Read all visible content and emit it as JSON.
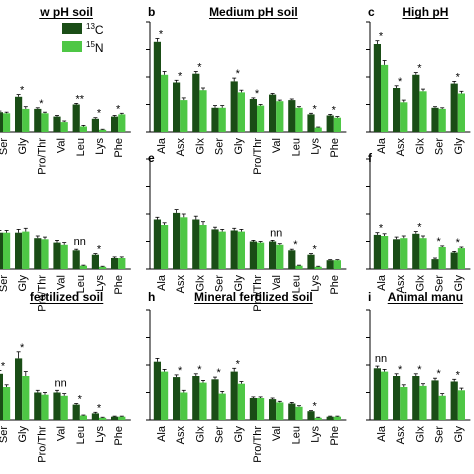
{
  "legend": {
    "c13": {
      "sup": "13",
      "label": "C",
      "color": "#1a4d16"
    },
    "n15": {
      "sup": "15",
      "label": "N",
      "color": "#4ec745"
    }
  },
  "chart_data": [
    {
      "type": "bar",
      "letter": "",
      "title": "w pH soil",
      "categories": [
        "Ser",
        "Gly",
        "Pro/Thr",
        "Val",
        "Leu",
        "Lys",
        "Phe"
      ],
      "series": [
        {
          "key": "c13",
          "values": [
            0.18,
            0.32,
            0.21,
            0.14,
            0.25,
            0.12,
            0.14
          ]
        },
        {
          "key": "n15",
          "values": [
            0.17,
            0.21,
            0.17,
            0.09,
            0.05,
            0.02,
            0.16
          ]
        }
      ],
      "errors": [
        [
          0.01,
          0.02,
          0.01,
          0.01,
          0.01,
          0.01,
          0.01
        ],
        [
          0.01,
          0.02,
          0.01,
          0.01,
          0.01,
          0.005,
          0.01
        ]
      ],
      "annotations": [
        "",
        "*",
        "*",
        "",
        "**",
        "*",
        "*"
      ],
      "ylim": [
        0,
        1
      ]
    },
    {
      "type": "bar",
      "letter": "b",
      "title": "Medium pH soil",
      "categories": [
        "Ala",
        "Asx",
        "Glx",
        "Ser",
        "Gly",
        "Pro/Thr",
        "Val",
        "Leu",
        "Lys",
        "Phe"
      ],
      "series": [
        {
          "key": "c13",
          "values": [
            0.82,
            0.45,
            0.53,
            0.22,
            0.46,
            0.3,
            0.34,
            0.29,
            0.16,
            0.15
          ]
        },
        {
          "key": "n15",
          "values": [
            0.52,
            0.29,
            0.38,
            0.22,
            0.36,
            0.24,
            0.28,
            0.22,
            0.04,
            0.13
          ]
        }
      ],
      "errors": [
        [
          0.03,
          0.02,
          0.02,
          0.02,
          0.03,
          0.01,
          0.01,
          0.01,
          0.01,
          0.01
        ],
        [
          0.03,
          0.02,
          0.02,
          0.02,
          0.02,
          0.01,
          0.01,
          0.01,
          0.005,
          0.01
        ]
      ],
      "annotations": [
        "*",
        "*",
        "*",
        "",
        "*",
        "*",
        "",
        "",
        "*",
        "*"
      ],
      "ylim": [
        0,
        1
      ]
    },
    {
      "type": "bar",
      "letter": "c",
      "title": "High pH",
      "categories": [
        "Ala",
        "Asx",
        "Glx",
        "Ser",
        "Gly"
      ],
      "series": [
        {
          "key": "c13",
          "values": [
            0.8,
            0.4,
            0.52,
            0.22,
            0.44
          ]
        },
        {
          "key": "n15",
          "values": [
            0.61,
            0.27,
            0.37,
            0.21,
            0.35
          ]
        }
      ],
      "errors": [
        [
          0.03,
          0.02,
          0.02,
          0.01,
          0.02
        ],
        [
          0.04,
          0.02,
          0.02,
          0.01,
          0.02
        ]
      ],
      "annotations": [
        "*",
        "*",
        "*",
        "",
        "*"
      ],
      "ylim": [
        0,
        1
      ]
    },
    {
      "type": "bar",
      "letter": "",
      "title": "",
      "categories": [
        "Ser",
        "Gly",
        "Pro/Thr",
        "Val",
        "Leu",
        "Lys",
        "Phe"
      ],
      "series": [
        {
          "key": "c13",
          "values": [
            0.33,
            0.33,
            0.28,
            0.24,
            0.17,
            0.13,
            0.1
          ]
        },
        {
          "key": "n15",
          "values": [
            0.33,
            0.34,
            0.27,
            0.22,
            0.03,
            0.02,
            0.1
          ]
        }
      ],
      "errors": [
        [
          0.02,
          0.03,
          0.02,
          0.02,
          0.01,
          0.01,
          0.01
        ],
        [
          0.02,
          0.03,
          0.02,
          0.02,
          0.005,
          0.005,
          0.01
        ]
      ],
      "annotations": [
        "",
        "",
        "",
        "",
        "nn",
        "*",
        ""
      ],
      "ylim": [
        0,
        1
      ]
    },
    {
      "type": "bar",
      "letter": "e",
      "title": "",
      "categories": [
        "Ala",
        "Asx",
        "Glx",
        "Ser",
        "Gly",
        "Pro/Thr",
        "Val",
        "Leu",
        "Lys",
        "Phe"
      ],
      "series": [
        {
          "key": "c13",
          "values": [
            0.45,
            0.51,
            0.45,
            0.36,
            0.35,
            0.25,
            0.25,
            0.17,
            0.13,
            0.08
          ]
        },
        {
          "key": "n15",
          "values": [
            0.4,
            0.47,
            0.4,
            0.34,
            0.34,
            0.24,
            0.22,
            0.03,
            0.02,
            0.08
          ]
        }
      ],
      "errors": [
        [
          0.02,
          0.03,
          0.03,
          0.02,
          0.02,
          0.01,
          0.01,
          0.01,
          0.01,
          0.005
        ],
        [
          0.02,
          0.03,
          0.03,
          0.02,
          0.02,
          0.01,
          0.01,
          0.005,
          0.005,
          0.005
        ]
      ],
      "annotations": [
        "",
        "",
        "",
        "",
        "",
        "",
        "nn",
        "*",
        "*",
        ""
      ],
      "ylim": [
        0,
        1
      ]
    },
    {
      "type": "bar",
      "letter": "f",
      "title": "",
      "categories": [
        "Ala",
        "Asx",
        "Glx",
        "Ser",
        "Gly"
      ],
      "series": [
        {
          "key": "c13",
          "values": [
            0.31,
            0.27,
            0.32,
            0.09,
            0.15
          ]
        },
        {
          "key": "n15",
          "values": [
            0.3,
            0.28,
            0.28,
            0.2,
            0.19
          ]
        }
      ],
      "errors": [
        [
          0.02,
          0.02,
          0.02,
          0.01,
          0.01
        ],
        [
          0.02,
          0.02,
          0.02,
          0.01,
          0.01
        ]
      ],
      "annotations": [
        "*",
        "",
        "*",
        "*",
        "*"
      ],
      "ylim": [
        0,
        1
      ]
    },
    {
      "type": "bar",
      "letter": "",
      "title": "fertilized soil",
      "categories": [
        "Ser",
        "Gly",
        "Pro/Thr",
        "Val",
        "Leu",
        "Lys",
        "Phe"
      ],
      "series": [
        {
          "key": "c13",
          "values": [
            0.42,
            0.56,
            0.25,
            0.25,
            0.14,
            0.06,
            0.03
          ]
        },
        {
          "key": "n15",
          "values": [
            0.3,
            0.4,
            0.23,
            0.22,
            0.04,
            0.02,
            0.03
          ]
        }
      ],
      "errors": [
        [
          0.03,
          0.06,
          0.02,
          0.02,
          0.01,
          0.01,
          0.005
        ],
        [
          0.02,
          0.04,
          0.02,
          0.02,
          0.005,
          0.005,
          0.005
        ]
      ],
      "annotations": [
        "*",
        "*",
        "",
        "nn",
        "*",
        "*",
        ""
      ],
      "ylim": [
        0,
        1
      ]
    },
    {
      "type": "bar",
      "letter": "h",
      "title": "Mineral fertilized soil",
      "categories": [
        "Ala",
        "Asx",
        "Glx",
        "Ser",
        "Gly",
        "Pro/Thr",
        "Val",
        "Leu",
        "Lys",
        "Phe"
      ],
      "series": [
        {
          "key": "c13",
          "values": [
            0.53,
            0.39,
            0.4,
            0.37,
            0.44,
            0.2,
            0.19,
            0.15,
            0.08,
            0.03
          ]
        },
        {
          "key": "n15",
          "values": [
            0.44,
            0.25,
            0.34,
            0.24,
            0.33,
            0.2,
            0.16,
            0.12,
            0.02,
            0.03
          ]
        }
      ],
      "errors": [
        [
          0.03,
          0.02,
          0.02,
          0.02,
          0.03,
          0.01,
          0.01,
          0.01,
          0.005,
          0.005
        ],
        [
          0.02,
          0.02,
          0.02,
          0.02,
          0.02,
          0.01,
          0.01,
          0.01,
          0.005,
          0.005
        ]
      ],
      "annotations": [
        "",
        "*",
        "*",
        "*",
        "*",
        "",
        "",
        "",
        "*",
        ""
      ],
      "ylim": [
        0,
        1
      ]
    },
    {
      "type": "bar",
      "letter": "i",
      "title": "Animal manu",
      "categories": [
        "Ala",
        "Asx",
        "Glx",
        "Ser",
        "Gly"
      ],
      "series": [
        {
          "key": "c13",
          "values": [
            0.47,
            0.4,
            0.4,
            0.36,
            0.35
          ]
        },
        {
          "key": "n15",
          "values": [
            0.44,
            0.3,
            0.31,
            0.22,
            0.27
          ]
        }
      ],
      "errors": [
        [
          0.02,
          0.02,
          0.02,
          0.02,
          0.02
        ],
        [
          0.02,
          0.02,
          0.02,
          0.02,
          0.02
        ]
      ],
      "annotations": [
        "nn",
        "*",
        "*",
        "*",
        "*"
      ],
      "ylim": [
        0,
        1
      ]
    }
  ]
}
